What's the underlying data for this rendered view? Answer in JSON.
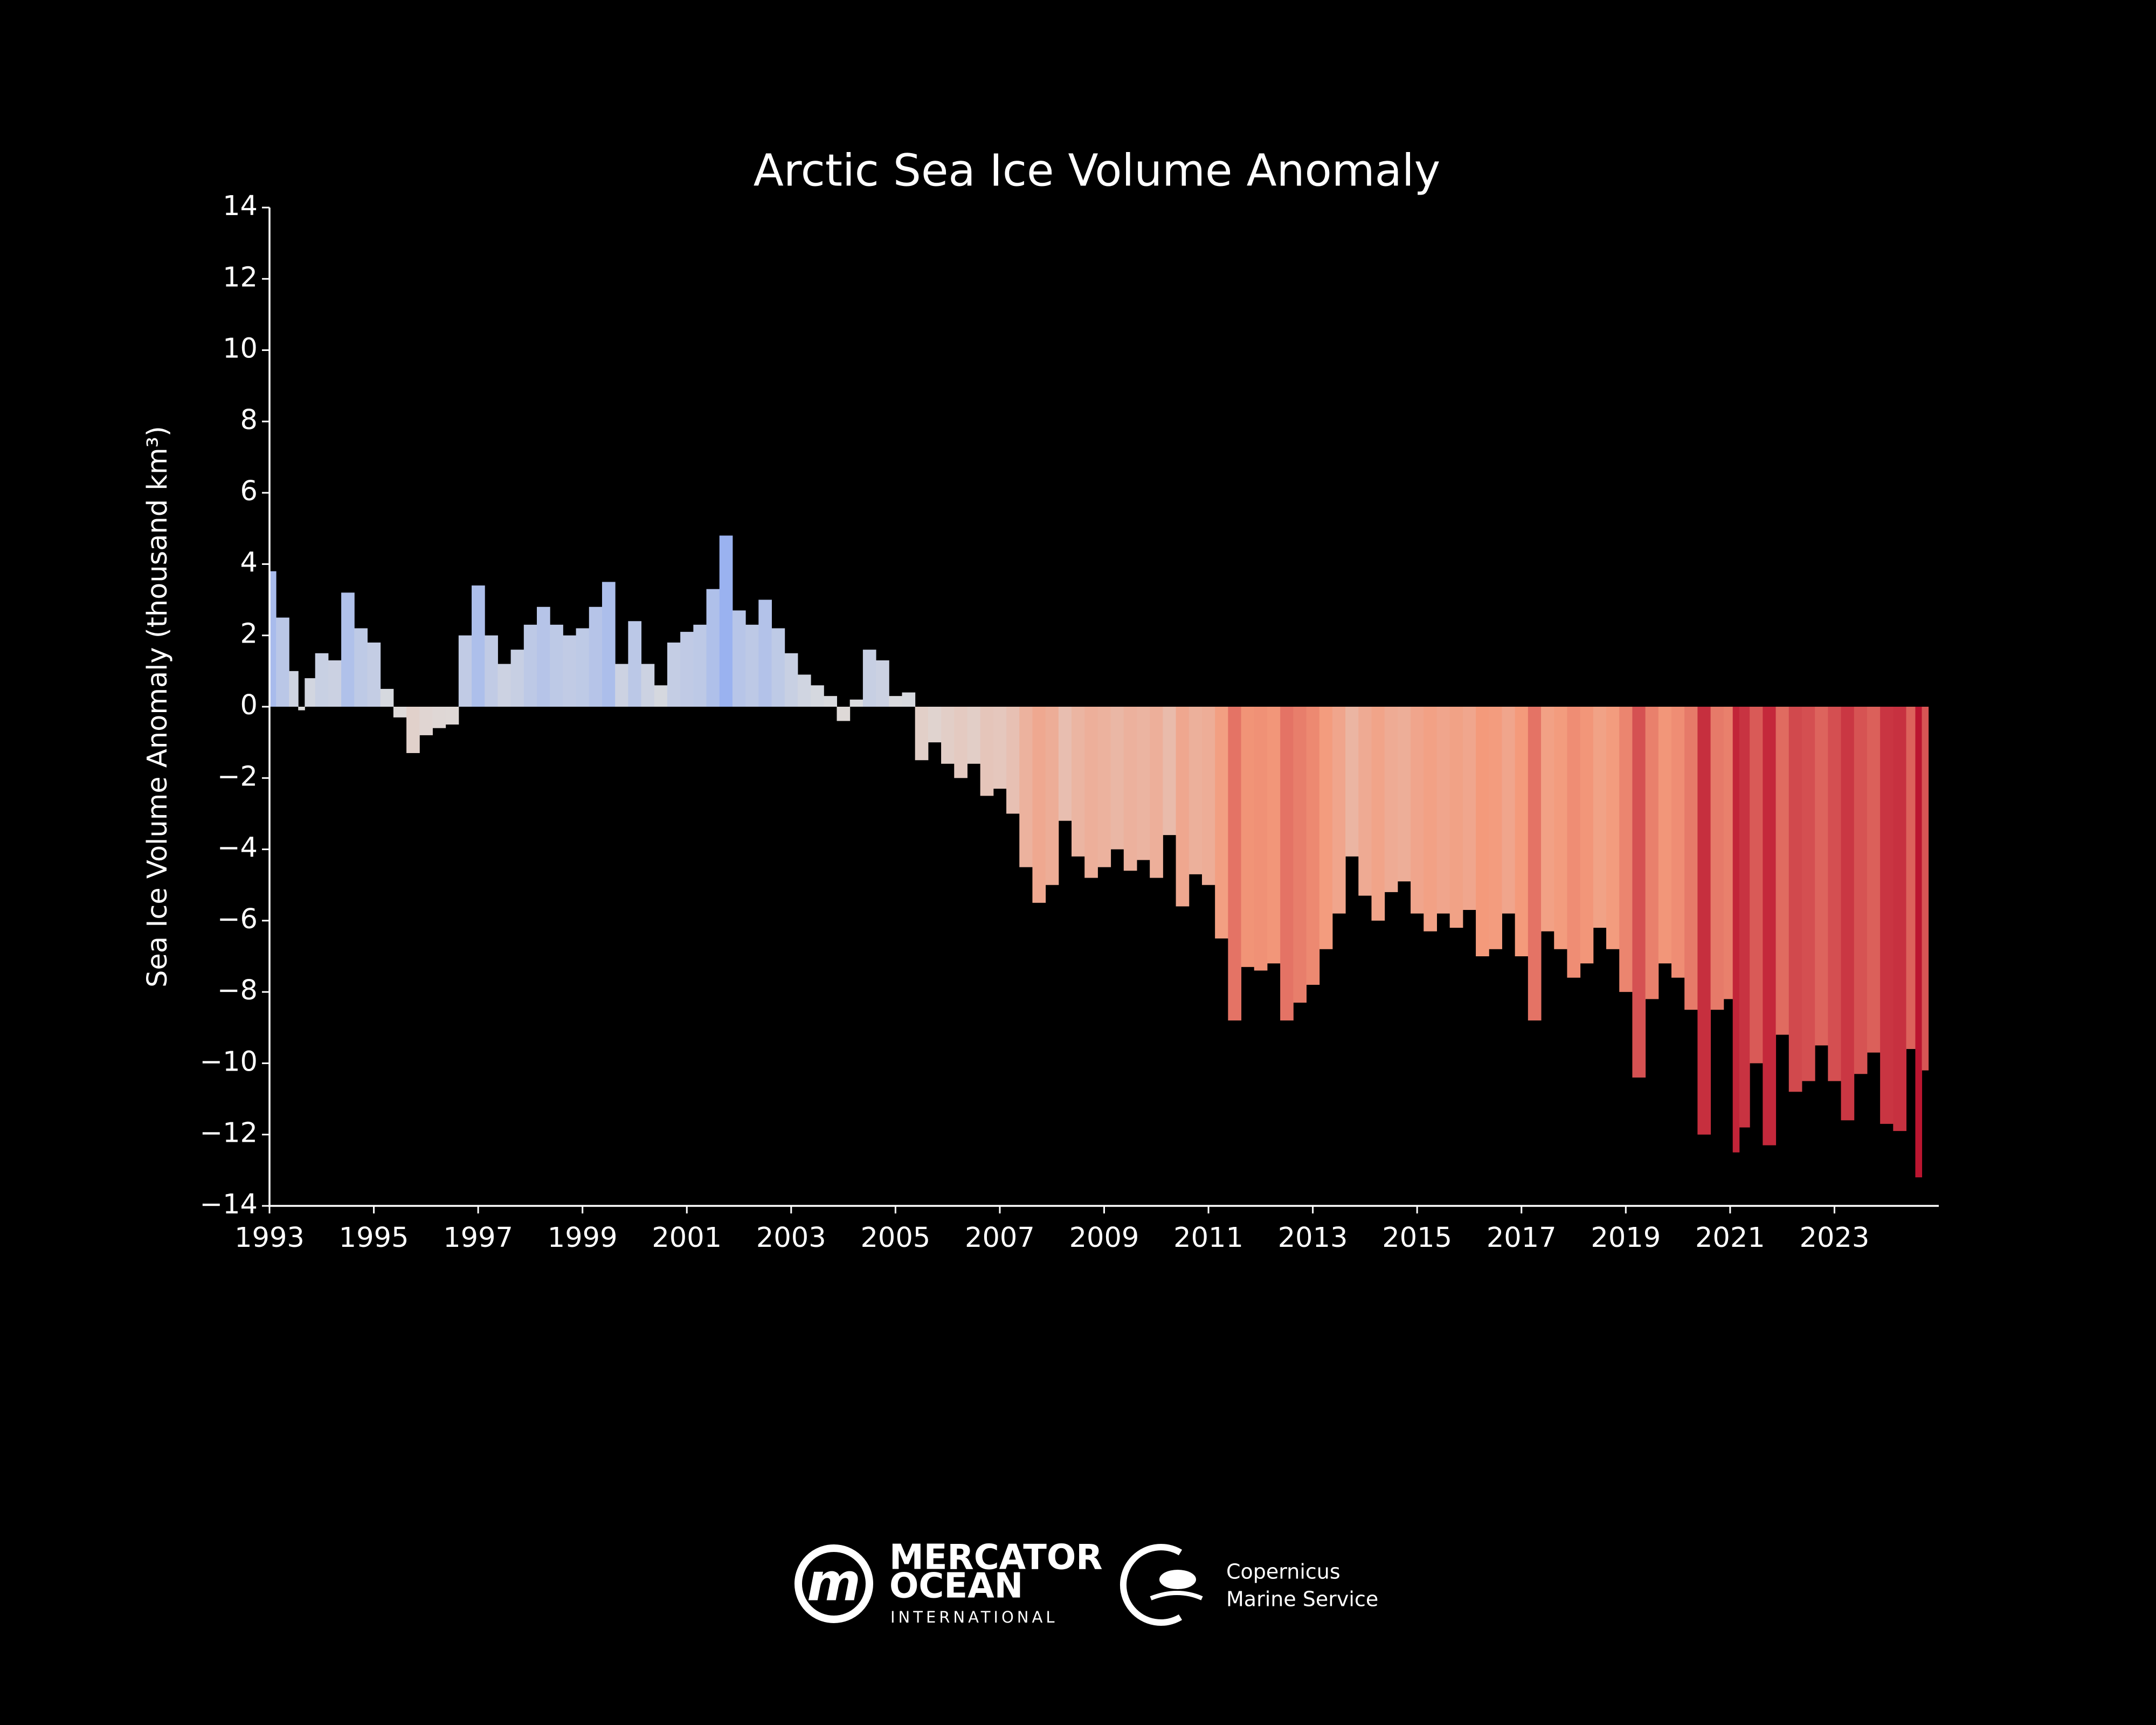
{
  "chart_data": {
    "type": "area",
    "title": "Arctic Sea Ice Volume Anomaly",
    "y_label": "Sea Ice Volume Anomaly (thousand km³)",
    "x": [
      1993.0,
      1993.25,
      1993.5,
      1993.6,
      1993.75,
      1994.0,
      1994.25,
      1994.5,
      1994.75,
      1995.0,
      1995.25,
      1995.5,
      1995.75,
      1996.0,
      1996.25,
      1996.5,
      1996.75,
      1997.0,
      1997.25,
      1997.5,
      1997.75,
      1998.0,
      1998.25,
      1998.5,
      1998.75,
      1999.0,
      1999.25,
      1999.5,
      1999.75,
      2000.0,
      2000.25,
      2000.5,
      2000.75,
      2001.0,
      2001.25,
      2001.5,
      2001.75,
      2002.0,
      2002.25,
      2002.5,
      2002.75,
      2003.0,
      2003.25,
      2003.5,
      2003.75,
      2004.0,
      2004.25,
      2004.5,
      2004.75,
      2005.0,
      2005.25,
      2005.5,
      2005.75,
      2006.0,
      2006.25,
      2006.5,
      2006.75,
      2007.0,
      2007.25,
      2007.5,
      2007.75,
      2008.0,
      2008.25,
      2008.5,
      2008.75,
      2009.0,
      2009.25,
      2009.5,
      2009.75,
      2010.0,
      2010.25,
      2010.5,
      2010.75,
      2011.0,
      2011.25,
      2011.5,
      2011.75,
      2012.0,
      2012.25,
      2012.5,
      2012.75,
      2013.0,
      2013.25,
      2013.5,
      2013.75,
      2014.0,
      2014.25,
      2014.5,
      2014.75,
      2015.0,
      2015.25,
      2015.5,
      2015.75,
      2016.0,
      2016.25,
      2016.5,
      2016.75,
      2017.0,
      2017.25,
      2017.5,
      2017.75,
      2018.0,
      2018.25,
      2018.5,
      2018.75,
      2019.0,
      2019.25,
      2019.5,
      2019.75,
      2020.0,
      2020.25,
      2020.5,
      2020.75,
      2021.0,
      2021.1,
      2021.25,
      2021.5,
      2021.75,
      2022.0,
      2022.25,
      2022.5,
      2022.75,
      2023.0,
      2023.25,
      2023.5,
      2023.75,
      2024.0,
      2024.25,
      2024.5,
      2024.6,
      2024.75
    ],
    "values": [
      3.8,
      2.5,
      1.0,
      -0.1,
      0.8,
      1.5,
      1.3,
      3.2,
      2.2,
      1.8,
      0.5,
      -0.3,
      -1.3,
      -0.8,
      -0.6,
      -0.5,
      2.0,
      3.4,
      2.0,
      1.2,
      1.6,
      2.3,
      2.8,
      2.3,
      2.0,
      2.2,
      2.8,
      3.5,
      1.2,
      2.4,
      1.2,
      0.6,
      1.8,
      2.1,
      2.3,
      3.3,
      4.8,
      2.7,
      2.3,
      3.0,
      2.2,
      1.5,
      0.9,
      0.6,
      0.3,
      -0.4,
      0.2,
      1.6,
      1.3,
      0.3,
      0.4,
      -1.5,
      -1.0,
      -1.6,
      -2.0,
      -1.6,
      -2.5,
      -2.3,
      -3.0,
      -4.5,
      -5.5,
      -5.0,
      -3.2,
      -4.2,
      -4.8,
      -4.5,
      -4.0,
      -4.6,
      -4.3,
      -4.8,
      -3.6,
      -5.6,
      -4.7,
      -5.0,
      -6.5,
      -8.8,
      -7.3,
      -7.4,
      -7.2,
      -8.8,
      -8.3,
      -7.8,
      -6.8,
      -5.8,
      -4.2,
      -5.3,
      -6.0,
      -5.2,
      -4.9,
      -5.8,
      -6.3,
      -5.8,
      -6.2,
      -5.7,
      -7.0,
      -6.8,
      -5.8,
      -7.0,
      -8.8,
      -6.3,
      -6.8,
      -7.6,
      -7.2,
      -6.2,
      -6.8,
      -8.0,
      -10.4,
      -8.2,
      -7.2,
      -7.6,
      -8.5,
      -12.0,
      -8.5,
      -8.2,
      -12.5,
      -11.8,
      -10.0,
      -12.3,
      -9.2,
      -10.8,
      -10.5,
      -9.5,
      -10.5,
      -11.6,
      -10.3,
      -9.7,
      -11.7,
      -11.9,
      -9.6,
      -13.2,
      -10.2
    ],
    "xlim": [
      1993,
      2025
    ],
    "xticks": [
      1993,
      1995,
      1997,
      1999,
      2001,
      2003,
      2005,
      2007,
      2009,
      2011,
      2013,
      2015,
      2017,
      2019,
      2021,
      2023
    ],
    "ylim": [
      -14,
      14
    ],
    "yticks": [
      {
        "value": -14,
        "label": "−14"
      },
      {
        "value": -12,
        "label": "−12"
      },
      {
        "value": -10,
        "label": "−10"
      },
      {
        "value": -8,
        "label": "−8"
      },
      {
        "value": -6,
        "label": "−6"
      },
      {
        "value": -4,
        "label": "−4"
      },
      {
        "value": -2,
        "label": "−2"
      },
      0,
      2,
      4,
      6,
      8,
      10,
      12,
      14
    ]
  },
  "logos": {
    "mercator": [
      "MERCATOR",
      "OCEAN",
      "INTERNATIONAL"
    ],
    "copernicus": [
      "Copernicus",
      "Marine Service"
    ]
  }
}
